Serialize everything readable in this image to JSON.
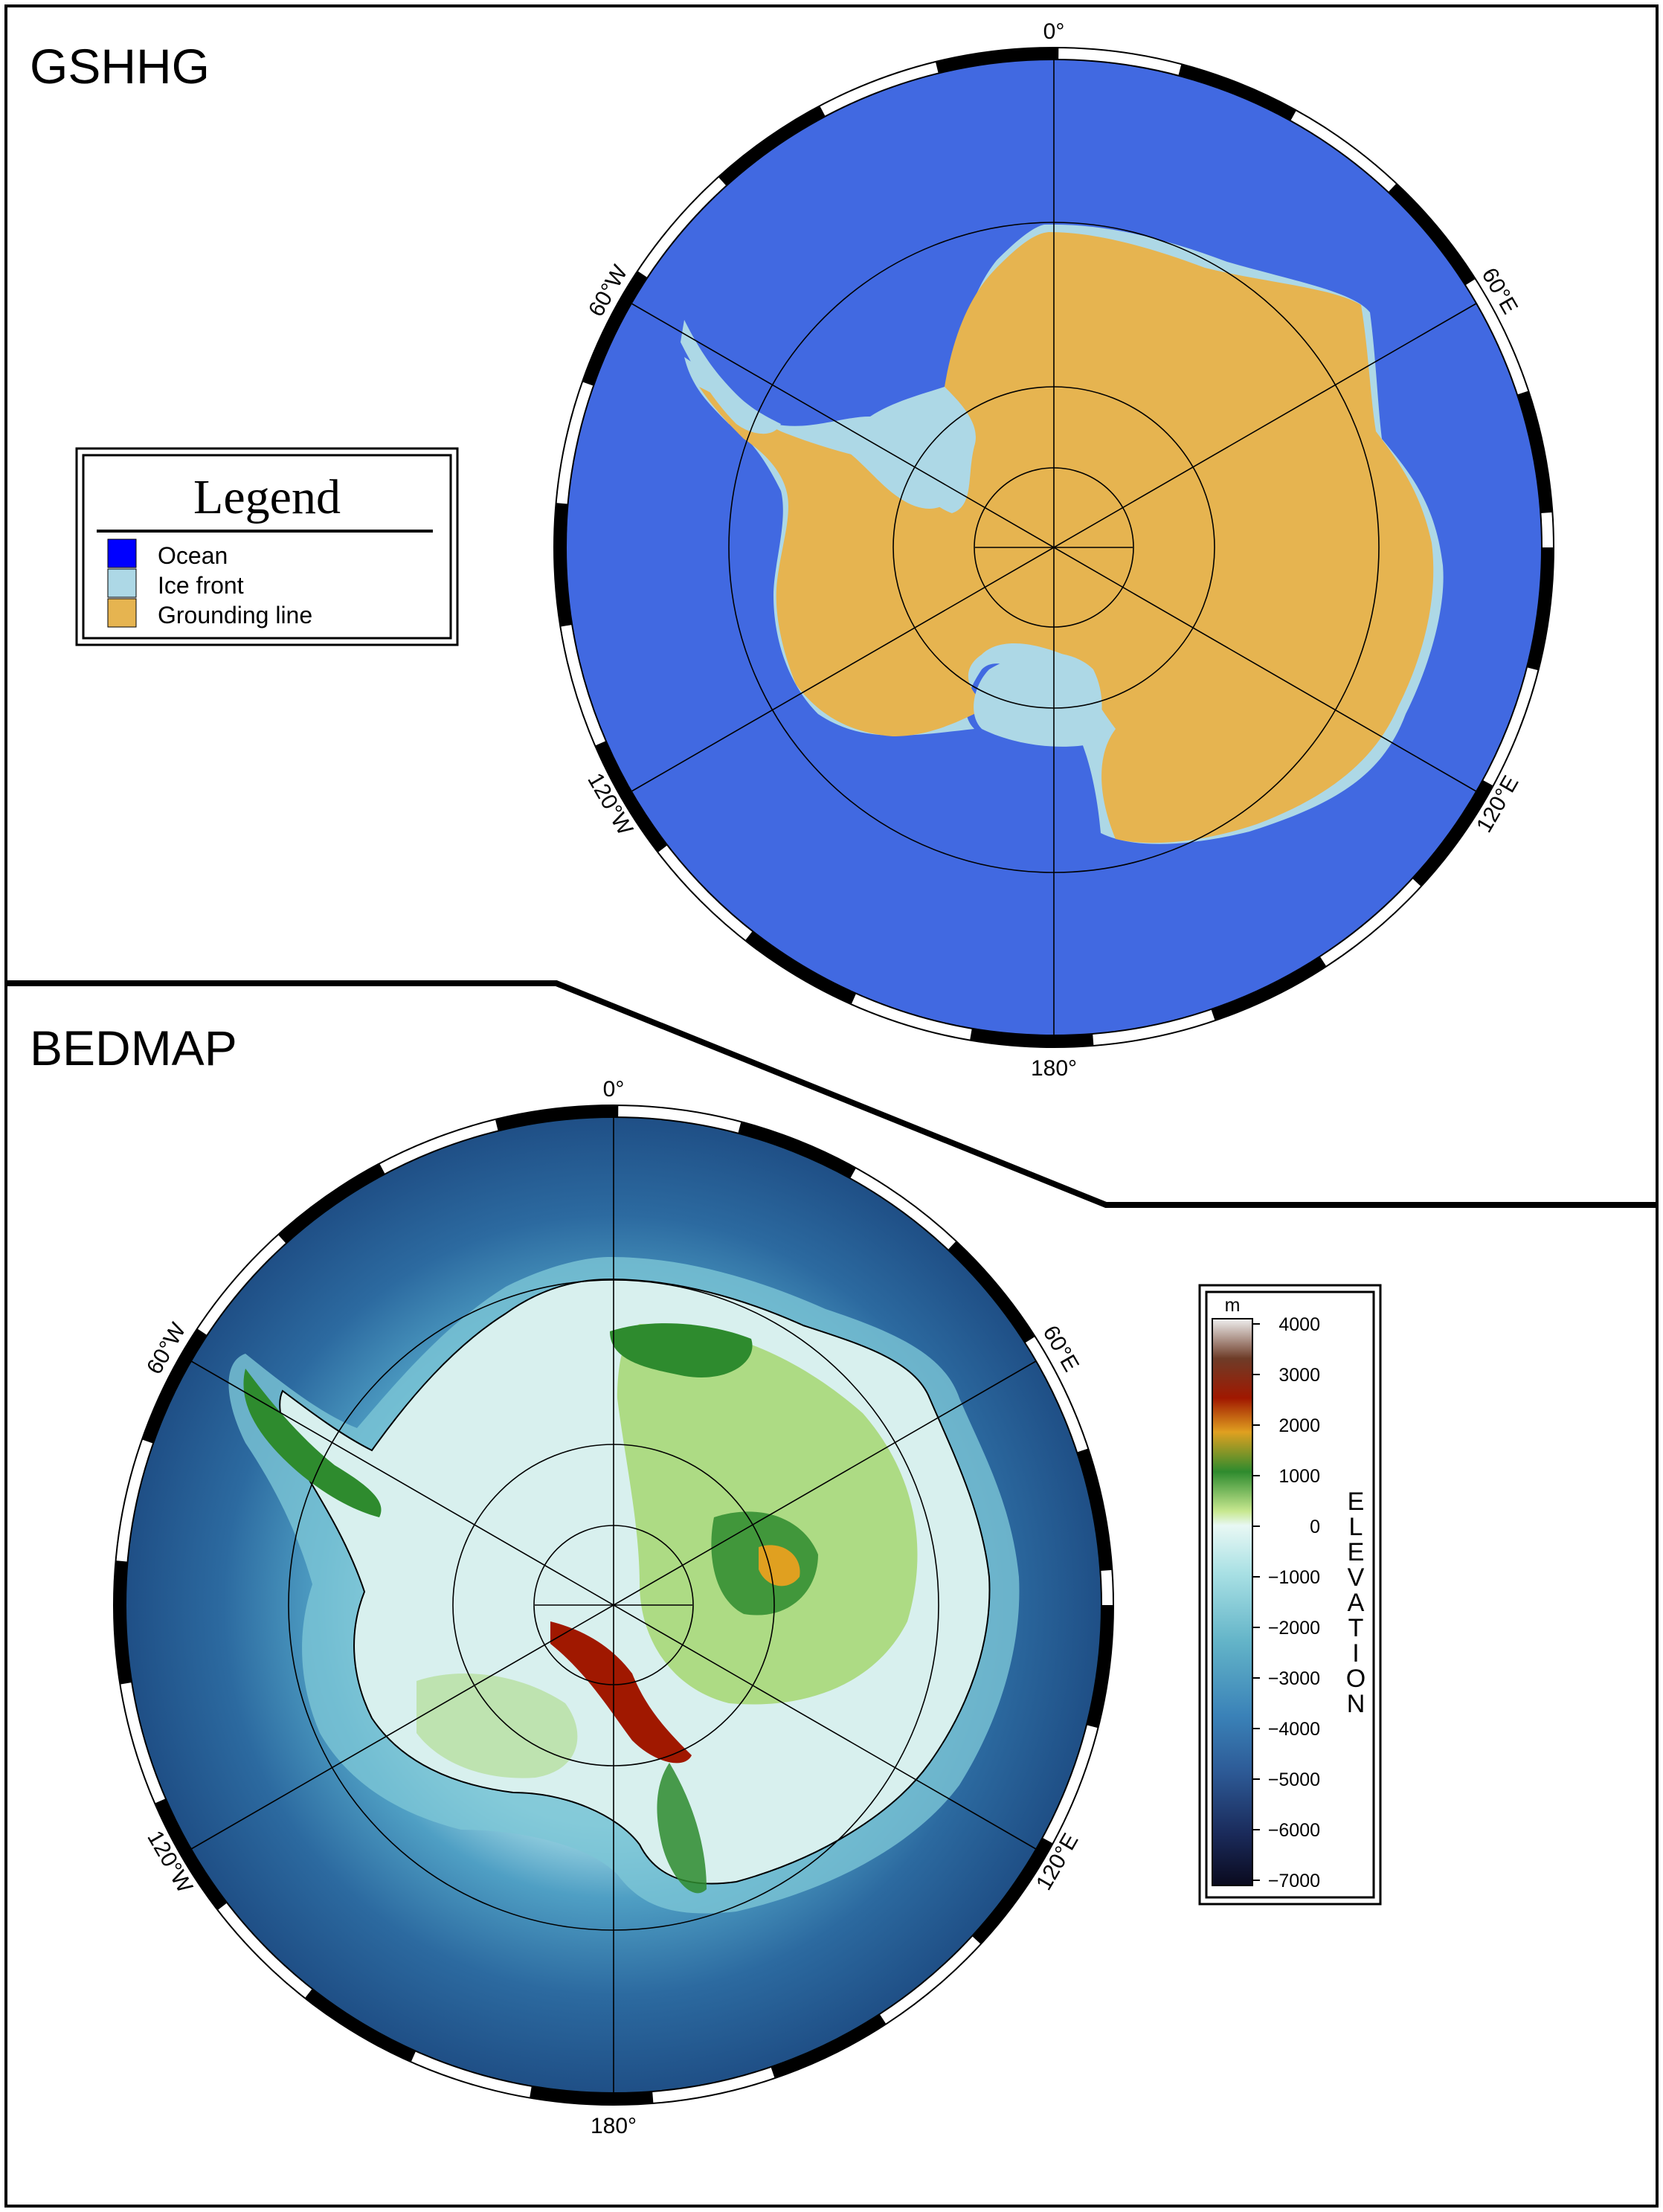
{
  "panels": {
    "top_title": "GSHHG",
    "bottom_title": "BEDMAP"
  },
  "map_top": {
    "labels": {
      "north": "0°",
      "south": "180°",
      "w60": "60°W",
      "e60": "60°E",
      "w120": "120°W",
      "e120": "120°E"
    },
    "colors": {
      "ocean": "#4169E1",
      "ice_front": "#ADD8E6",
      "grounding_line": "#E6B450"
    }
  },
  "legend": {
    "title": "Legend",
    "items": [
      {
        "label": "Ocean",
        "color": "#0000FF"
      },
      {
        "label": "Ice front",
        "color": "#ADD8E6"
      },
      {
        "label": "Grounding line",
        "color": "#E6B450"
      }
    ]
  },
  "map_bottom": {
    "labels": {
      "north": "0°",
      "south": "180°",
      "w60": "60°W",
      "e60": "60°E",
      "w120": "120°W",
      "e120": "120°E"
    }
  },
  "colorbar": {
    "unit": "m",
    "title": "ELEVATION",
    "ticks": [
      "4000",
      "3000",
      "2000",
      "1000",
      "0",
      "−1000",
      "−2000",
      "−3000",
      "−4000",
      "−5000",
      "−6000",
      "−7000"
    ],
    "range": [
      -7000,
      4000
    ],
    "colors": [
      "#0a0a1e",
      "#1a2a5a",
      "#2d5a96",
      "#3a82b8",
      "#63b4c8",
      "#a8e0e4",
      "#e8f8f4",
      "#c8e890",
      "#2e8b2e",
      "#e0a020",
      "#a01800",
      "#6e3c28",
      "#f0f0f0"
    ]
  }
}
